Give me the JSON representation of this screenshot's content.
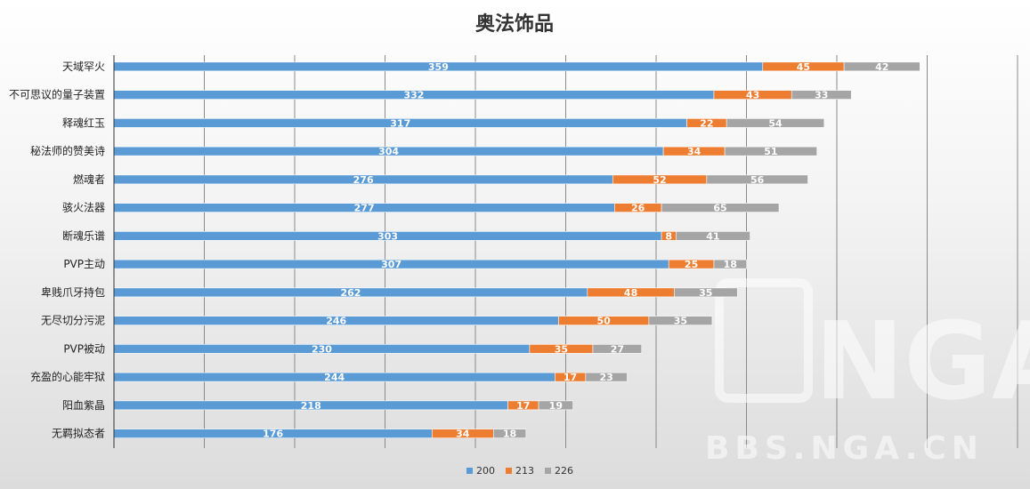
{
  "chart_data": {
    "type": "bar",
    "orientation": "horizontal",
    "stacked": true,
    "title": "奥法饰品",
    "categories": [
      "天域罕火",
      "不可思议的量子装置",
      "释魂红玉",
      "秘法师的赞美诗",
      "燃魂者",
      "骇火法器",
      "断魂乐谱",
      "PVP主动",
      "卑贱爪牙持包",
      "无尽切分污泥",
      "PVP被动",
      "充盈的心能牢狱",
      "阳血紫晶",
      "无羁拟态者"
    ],
    "series": [
      {
        "name": "200",
        "color": "#5b9bd5",
        "values": [
          359,
          332,
          317,
          304,
          276,
          277,
          303,
          307,
          262,
          246,
          230,
          244,
          218,
          176
        ]
      },
      {
        "name": "213",
        "color": "#ed7d31",
        "values": [
          45,
          43,
          22,
          34,
          52,
          26,
          8,
          25,
          48,
          50,
          35,
          17,
          17,
          34
        ]
      },
      {
        "name": "226",
        "color": "#a5a5a5",
        "values": [
          42,
          33,
          54,
          51,
          56,
          65,
          41,
          18,
          35,
          35,
          27,
          23,
          19,
          18
        ]
      }
    ],
    "xlim": [
      0,
      500
    ],
    "grid": true,
    "legend_position": "bottom"
  },
  "watermark": {
    "logo_text": "NGA",
    "site_text": "BBS.NGA.CN"
  }
}
